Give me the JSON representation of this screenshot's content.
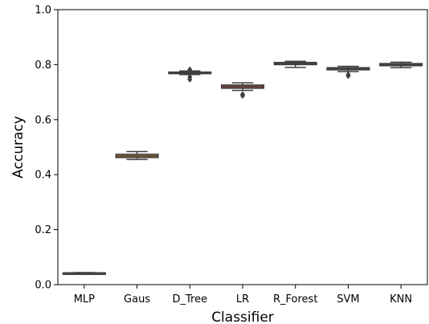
{
  "chart_data": {
    "type": "box",
    "xlabel": "Classifier",
    "ylabel": "Accuracy",
    "ylim": [
      0.0,
      1.0
    ],
    "yticks": [
      "0.0",
      "0.2",
      "0.4",
      "0.6",
      "0.8",
      "1.0"
    ],
    "grid": false,
    "categories": [
      "MLP",
      "Gaus",
      "D_Tree",
      "LR",
      "R_Forest",
      "SVM",
      "KNN"
    ],
    "boxes": [
      {
        "category": "MLP",
        "color": "#4a6c8c",
        "whisker_low": 0.04,
        "q1": 0.041,
        "median": 0.042,
        "q3": 0.043,
        "whisker_high": 0.044,
        "outliers": []
      },
      {
        "category": "Gaus",
        "color": "#c9822f",
        "whisker_low": 0.455,
        "q1": 0.462,
        "median": 0.468,
        "q3": 0.474,
        "whisker_high": 0.484,
        "outliers": []
      },
      {
        "category": "D_Tree",
        "color": "#4f8a55",
        "whisker_low": 0.764,
        "q1": 0.768,
        "median": 0.77,
        "q3": 0.773,
        "whisker_high": 0.777,
        "outliers": [
          0.782,
          0.755,
          0.746
        ]
      },
      {
        "category": "LR",
        "color": "#b8474a",
        "whisker_low": 0.706,
        "q1": 0.714,
        "median": 0.72,
        "q3": 0.726,
        "whisker_high": 0.734,
        "outliers": [
          0.692,
          0.687
        ]
      },
      {
        "category": "R_Forest",
        "color": "#7b6c9c",
        "whisker_low": 0.79,
        "q1": 0.8,
        "median": 0.804,
        "q3": 0.808,
        "whisker_high": 0.812,
        "outliers": []
      },
      {
        "category": "SVM",
        "color": "#8a6a55",
        "whisker_low": 0.775,
        "q1": 0.781,
        "median": 0.785,
        "q3": 0.789,
        "whisker_high": 0.794,
        "outliers": [
          0.764,
          0.759
        ]
      },
      {
        "category": "KNN",
        "color": "#c98aa8",
        "whisker_low": 0.789,
        "q1": 0.796,
        "median": 0.8,
        "q3": 0.804,
        "whisker_high": 0.809,
        "outliers": []
      }
    ]
  }
}
